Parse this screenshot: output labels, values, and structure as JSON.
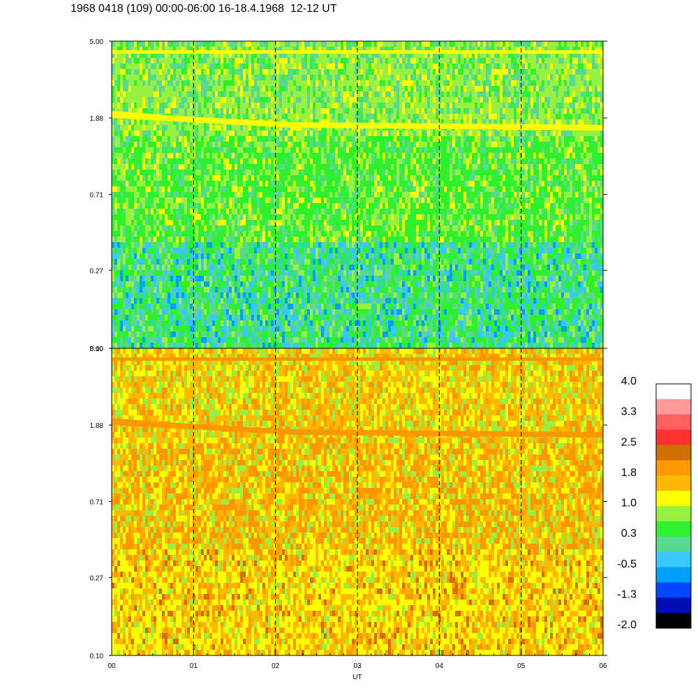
{
  "title": "1968 0418 (109) 00:00-06:00 16-18.4.1968  12-12 UT",
  "chart_data": {
    "type": "heatmap",
    "panels": [
      {
        "y_ticks": [
          "5.00",
          "1.88",
          "0.71",
          "0.27",
          "0.10"
        ],
        "y_values": [
          5.0,
          1.88,
          0.71,
          0.27,
          0.1
        ],
        "y_scale": "log",
        "ylim": [
          0.1,
          5.0
        ],
        "palette": [
          "#2ff02f",
          "#58d890",
          "#98f040",
          "#ffff00",
          "#38c8ff",
          "#00a0ff",
          "#0048ff"
        ],
        "dominant_levels": [
          "0.3",
          "1.0",
          "-0.5"
        ]
      },
      {
        "y_ticks": [
          "5.00",
          "1.88",
          "0.71",
          "0.27",
          "0.10"
        ],
        "y_values": [
          5.0,
          1.88,
          0.71,
          0.27,
          0.1
        ],
        "y_scale": "log",
        "ylim": [
          0.1,
          5.0
        ],
        "palette": [
          "#ffff00",
          "#ffb800",
          "#ff9800",
          "#98f040",
          "#d07000",
          "#2ff02f",
          "#ff3030"
        ],
        "dominant_levels": [
          "1.0",
          "1.8",
          "2.5"
        ]
      }
    ],
    "x_ticks": [
      "00",
      "01",
      "02",
      "03",
      "04",
      "05",
      "06"
    ],
    "x_values": [
      0,
      1,
      2,
      3,
      4,
      5,
      6
    ],
    "xlim": [
      0,
      6
    ],
    "xlabel": "UT",
    "dashed_gridlines_x": [
      1,
      2,
      3,
      4,
      5
    ],
    "colorbar": {
      "labels": [
        "4.0",
        "3.3",
        "2.5",
        "1.8",
        "1.0",
        "0.3",
        "-0.5",
        "-1.3",
        "-2.0"
      ],
      "colors": [
        "#ffffff",
        "#ff9898",
        "#ff6060",
        "#ff3030",
        "#d07000",
        "#ff9800",
        "#ffb800",
        "#ffff00",
        "#98f040",
        "#2ff02f",
        "#58d890",
        "#38c8ff",
        "#00a0ff",
        "#0048ff",
        "#0010b0",
        "#000000"
      ]
    }
  }
}
